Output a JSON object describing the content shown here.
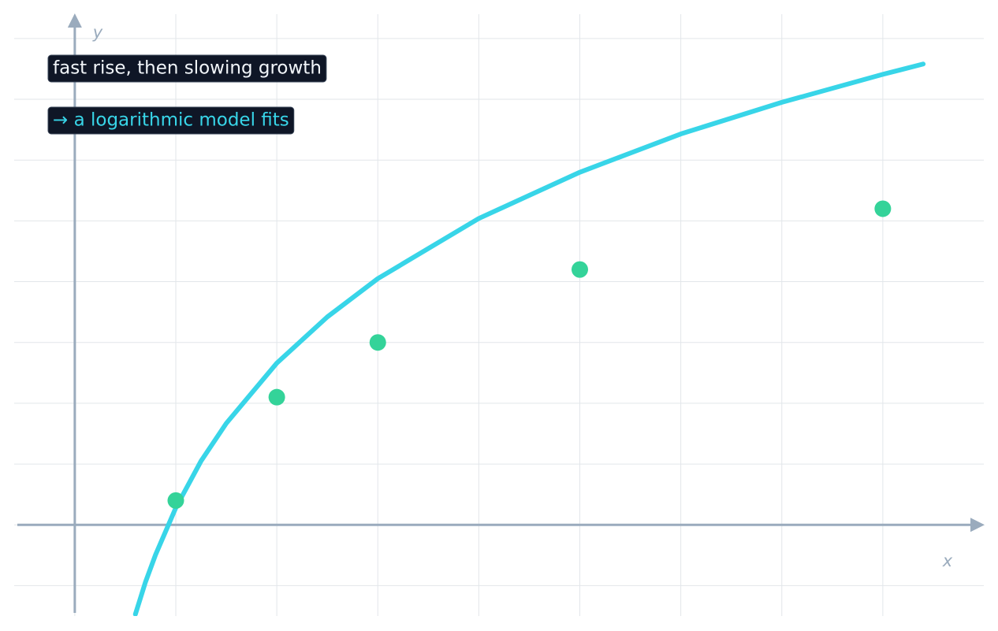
{
  "chart_data": {
    "type": "scatter",
    "x_label": "x",
    "y_label": "y",
    "annotations": [
      {
        "text": "fast rise, then slowing growth",
        "color": "#f1f5f9"
      },
      {
        "text": "→ a logarithmic model fits",
        "color": "#38d5e8"
      }
    ],
    "xlim": [
      -0.6,
      9
    ],
    "ylim": [
      -1.5,
      8.4
    ],
    "xticks": [
      0,
      1,
      2,
      3,
      4,
      5,
      6,
      7,
      8
    ],
    "yticks": [
      -1,
      0,
      1,
      2,
      3,
      4,
      5,
      6,
      7,
      8
    ],
    "grid": true,
    "series": [
      {
        "type": "line",
        "color": "#38d5e8",
        "x": [
          0.6,
          0.7,
          0.8,
          1,
          1.25,
          1.5,
          2,
          2.5,
          3,
          4,
          5,
          6,
          7,
          8,
          8.4
        ],
        "values": [
          -1.47,
          -0.94,
          -0.49,
          0.28,
          1.05,
          1.67,
          2.66,
          3.42,
          4.05,
          5.04,
          5.8,
          6.43,
          6.95,
          7.41,
          7.58
        ]
      },
      {
        "type": "scatter",
        "color": "#34d399",
        "x": [
          1,
          2,
          3,
          5,
          8
        ],
        "values": [
          0.4,
          2.1,
          3.0,
          4.2,
          5.2
        ]
      }
    ]
  }
}
